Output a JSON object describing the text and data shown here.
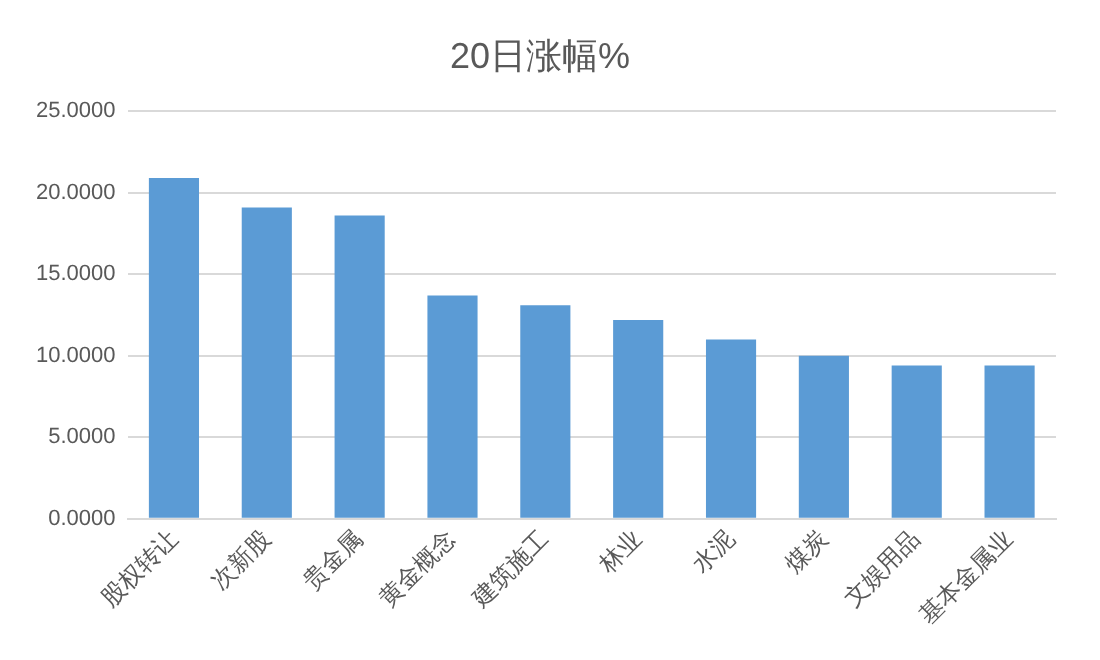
{
  "chart_data": {
    "type": "bar",
    "title": "20日涨幅%",
    "categories": [
      "股权转让",
      "次新股",
      "贵金属",
      "黄金概念",
      "建筑施工",
      "林业",
      "水泥",
      "煤炭",
      "文娱用品",
      "基本金属业"
    ],
    "values": [
      20.9,
      19.1,
      18.6,
      13.7,
      13.1,
      12.2,
      11.0,
      10.0,
      9.4,
      9.4
    ],
    "color": "#5b9bd5",
    "ylim": [
      0,
      25
    ],
    "yticks": [
      {
        "value": 0,
        "label": "0.0000"
      },
      {
        "value": 5,
        "label": "5.0000"
      },
      {
        "value": 10,
        "label": "10.0000"
      },
      {
        "value": 15,
        "label": "15.0000"
      },
      {
        "value": 20,
        "label": "20.0000"
      },
      {
        "value": 25,
        "label": "25.0000"
      }
    ],
    "grid": "y",
    "legend": false
  }
}
